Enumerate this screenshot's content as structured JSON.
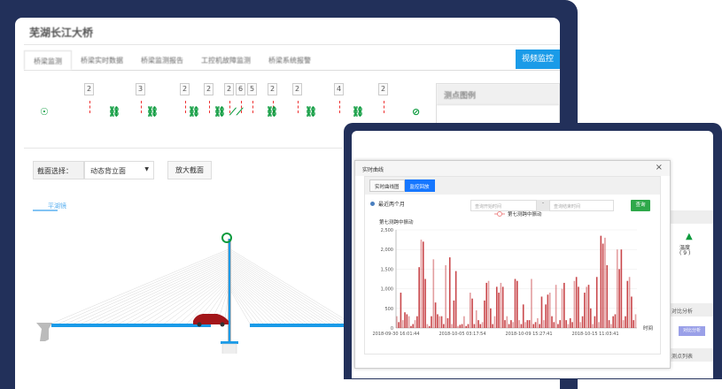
{
  "back_app": {
    "title": "芜湖长江大桥",
    "tabs": [
      "桥梁监测",
      "桥梁实时数据",
      "桥梁监测报告",
      "工控机故障监测",
      "桥梁系统报警"
    ],
    "video_button": "视频监控",
    "indicator_counts": [
      "2",
      "3",
      "2",
      "2",
      "2",
      "6",
      "5",
      "2",
      "2",
      "4",
      "2"
    ],
    "legend_title": "测点图例",
    "section_label": "截面选择：",
    "section_value": "动态背立面",
    "zoom_button": "放大截面",
    "direction_label": "平湖镜"
  },
  "front_app": {
    "right_panel": {
      "sensor_label": "温度",
      "sensor_count": "( 9 )",
      "compare_header": "对比分析",
      "compare_button": "对比分析",
      "list_header": "测点列表"
    },
    "modal": {
      "title": "实时曲线",
      "close": "×",
      "tabs": [
        "实时曲线图",
        "监控回放"
      ],
      "active_tab": 1,
      "radio_label": "最近两个月",
      "start_placeholder": "查询开始时间",
      "separator": "-",
      "end_placeholder": "查询结束时间",
      "query_button": "查询"
    }
  },
  "chart_data": {
    "type": "bar",
    "series": [
      {
        "name": "第七测跨中振动",
        "color": "#c0282d"
      }
    ],
    "ylabel": "第七测跨中振动",
    "xlabel": "时间",
    "ylim": [
      0,
      2500
    ],
    "yticks": [
      "0",
      "500",
      "1,000",
      "1,500",
      "2,000",
      "2,500"
    ],
    "xticks": [
      "2018-09-30 16:01:44",
      "2018-10-05 03:17:54",
      "2018-10-09 15:27:41",
      "2018-10-15 11:03:41"
    ],
    "grid": true,
    "legend": "top-center",
    "values": [
      300,
      150,
      900,
      200,
      400,
      350,
      300,
      50,
      100,
      200,
      300,
      1550,
      2250,
      2200,
      1250,
      100,
      50,
      300,
      1750,
      650,
      350,
      300,
      300,
      100,
      1600,
      250,
      1800,
      100,
      700,
      1450,
      50,
      80,
      100,
      300,
      50,
      100,
      900,
      750,
      100,
      450,
      200,
      100,
      150,
      700,
      1150,
      1200,
      500,
      100,
      300,
      1050,
      900,
      1150,
      1050,
      200,
      300,
      100,
      200,
      150,
      1250,
      1200,
      200,
      100,
      600,
      150,
      200,
      200,
      1250,
      100,
      150,
      250,
      100,
      800,
      200,
      600,
      850,
      900,
      300,
      150,
      1100,
      100,
      200,
      1000,
      1150,
      200,
      100,
      250,
      150,
      1200,
      1300,
      1050,
      150,
      300,
      900,
      1050,
      1100,
      500,
      100,
      300,
      1300,
      150,
      2350,
      2150,
      2300,
      1600,
      200,
      100,
      300,
      350,
      2000,
      1500,
      2000,
      200,
      300,
      1200,
      1300,
      800,
      200,
      350
    ]
  }
}
